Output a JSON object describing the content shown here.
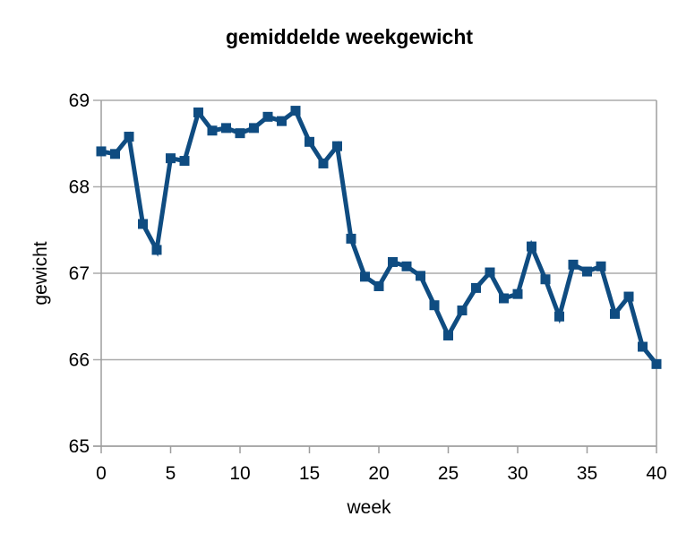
{
  "chart_data": {
    "type": "line",
    "title": "gemiddelde weekgewicht",
    "xlabel": "week",
    "ylabel": "gewicht",
    "x": [
      0,
      1,
      2,
      3,
      4,
      5,
      6,
      7,
      8,
      9,
      10,
      11,
      12,
      13,
      14,
      15,
      16,
      17,
      18,
      19,
      20,
      21,
      22,
      23,
      24,
      25,
      26,
      27,
      28,
      29,
      30,
      31,
      32,
      33,
      34,
      35,
      36,
      37,
      38,
      39,
      40
    ],
    "values": [
      68.41,
      68.38,
      68.58,
      67.57,
      67.27,
      68.33,
      68.3,
      68.86,
      68.65,
      68.68,
      68.62,
      68.68,
      68.81,
      68.76,
      68.88,
      68.52,
      68.27,
      68.47,
      67.4,
      66.96,
      66.85,
      67.13,
      67.08,
      66.97,
      66.63,
      66.28,
      66.57,
      66.83,
      67.01,
      66.71,
      66.76,
      67.31,
      66.93,
      66.5,
      67.1,
      67.02,
      67.08,
      66.53,
      66.73,
      66.15,
      65.95
    ],
    "xlim": [
      0,
      40
    ],
    "ylim": [
      65,
      69
    ],
    "x_ticks": [
      0,
      5,
      10,
      15,
      20,
      25,
      30,
      35,
      40
    ],
    "y_ticks": [
      65,
      66,
      67,
      68,
      69
    ],
    "grid": "horizontal-only",
    "legend": "none",
    "marker": "square",
    "colors": {
      "series": "#0f4c81",
      "gridline": "#ababab",
      "axis": "#9d9d9d",
      "text": "#000000",
      "background": "#ffffff"
    }
  }
}
